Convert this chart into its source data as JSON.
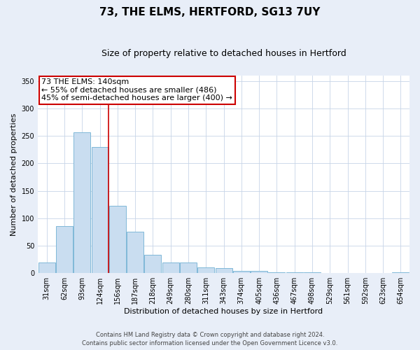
{
  "title": "73, THE ELMS, HERTFORD, SG13 7UY",
  "subtitle": "Size of property relative to detached houses in Hertford",
  "xlabel": "Distribution of detached houses by size in Hertford",
  "ylabel": "Number of detached properties",
  "categories": [
    "31sqm",
    "62sqm",
    "93sqm",
    "124sqm",
    "156sqm",
    "187sqm",
    "218sqm",
    "249sqm",
    "280sqm",
    "311sqm",
    "343sqm",
    "374sqm",
    "405sqm",
    "436sqm",
    "467sqm",
    "498sqm",
    "529sqm",
    "561sqm",
    "592sqm",
    "623sqm",
    "654sqm"
  ],
  "values": [
    19,
    86,
    257,
    230,
    122,
    76,
    33,
    20,
    20,
    11,
    9,
    4,
    4,
    2,
    1,
    1,
    0,
    0,
    0,
    0,
    2
  ],
  "bar_color": "#c9ddf0",
  "bar_edge_color": "#7fb8d8",
  "marker_color": "#cc0000",
  "annotation_title": "73 THE ELMS: 140sqm",
  "annotation_line1": "← 55% of detached houses are smaller (486)",
  "annotation_line2": "45% of semi-detached houses are larger (400) →",
  "annotation_box_color": "#cc0000",
  "ylim": [
    0,
    360
  ],
  "yticks": [
    0,
    50,
    100,
    150,
    200,
    250,
    300,
    350
  ],
  "footer1": "Contains HM Land Registry data © Crown copyright and database right 2024.",
  "footer2": "Contains public sector information licensed under the Open Government Licence v3.0.",
  "background_color": "#e8eef8",
  "plot_background": "#ffffff",
  "grid_color": "#c8d4e8",
  "title_fontsize": 11,
  "subtitle_fontsize": 9,
  "tick_fontsize": 7,
  "label_fontsize": 8,
  "annotation_fontsize": 8,
  "footer_fontsize": 6
}
